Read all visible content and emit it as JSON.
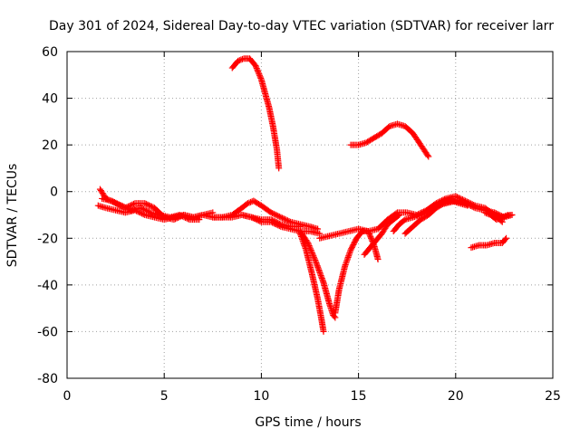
{
  "chart_data": {
    "type": "scatter",
    "title": "Day 301 of 2024, Sidereal Day-to-day VTEC variation (SDTVAR) for receiver larr",
    "xlabel": "GPS time / hours",
    "ylabel": "SDTVAR / TECUs",
    "xlim": [
      0,
      25
    ],
    "ylim": [
      -80,
      60
    ],
    "xticks": [
      "0",
      "5",
      "10",
      "15",
      "20",
      "25"
    ],
    "yticks": [
      "60",
      "40",
      "20",
      "0",
      "-20",
      "-40",
      "-60",
      "-80"
    ],
    "grid": true,
    "legend": "none",
    "marker": "plus",
    "color": "#ff0000",
    "arcs": [
      {
        "x": [
          8.5,
          8.8,
          9.1,
          9.4,
          9.7,
          10.0,
          10.2,
          10.4,
          10.6,
          10.8,
          10.9
        ],
        "y": [
          53,
          56,
          57,
          57,
          54,
          48,
          42,
          36,
          28,
          18,
          10
        ]
      },
      {
        "x": [
          14.6,
          15.0,
          15.4,
          15.8,
          16.2,
          16.6,
          17.0,
          17.4,
          17.8,
          18.2,
          18.6
        ],
        "y": [
          20,
          20,
          21,
          23,
          25,
          28,
          29,
          28,
          25,
          20,
          15
        ]
      },
      {
        "x": [
          1.6,
          2.0,
          2.5,
          3.0,
          3.5,
          4.0,
          4.5,
          5.0,
          5.5,
          6.0,
          6.5,
          7.0,
          7.5,
          8.0,
          8.5,
          9.0,
          9.5,
          10.0,
          10.5,
          11.0,
          11.5,
          12.0,
          12.5,
          13.0
        ],
        "y": [
          -6,
          -7,
          -8,
          -9,
          -8,
          -10,
          -11,
          -12,
          -11,
          -10,
          -11,
          -10,
          -11,
          -11,
          -11,
          -10,
          -11,
          -13,
          -13,
          -15,
          -16,
          -17,
          -17,
          -18
        ]
      },
      {
        "x": [
          1.7,
          2.0,
          2.5,
          3.0,
          3.5,
          4.0,
          4.5,
          5.0,
          5.5,
          6.0,
          6.5,
          7.0,
          7.5
        ],
        "y": [
          1,
          -3,
          -5,
          -7,
          -5,
          -5,
          -7,
          -11,
          -12,
          -10,
          -11,
          -10,
          -9
        ]
      },
      {
        "x": [
          1.8,
          2.3,
          2.8,
          3.3,
          3.8,
          4.3,
          4.8,
          5.3,
          5.8,
          6.3,
          6.8
        ],
        "y": [
          -3,
          -4,
          -6,
          -8,
          -7,
          -9,
          -10,
          -11,
          -10,
          -12,
          -12
        ]
      },
      {
        "x": [
          7.5,
          8.0,
          8.5,
          9.0,
          9.3,
          9.6,
          10.0,
          10.5,
          11.0,
          11.5,
          12.0,
          12.5,
          12.9
        ],
        "y": [
          -11,
          -11,
          -10,
          -7,
          -5,
          -4,
          -6,
          -9,
          -11,
          -13,
          -14,
          -15,
          -16
        ]
      },
      {
        "x": [
          9.0,
          9.5,
          10.0,
          10.5,
          11.0,
          11.5,
          12.0
        ],
        "y": [
          -10,
          -11,
          -12,
          -12,
          -14,
          -15,
          -15
        ]
      },
      {
        "x": [
          12.0,
          12.3,
          12.6,
          12.9,
          13.1,
          13.2
        ],
        "y": [
          -18,
          -25,
          -35,
          -46,
          -55,
          -60
        ]
      },
      {
        "x": [
          12.0,
          12.4,
          12.8,
          13.2,
          13.5,
          13.7,
          13.8
        ],
        "y": [
          -17,
          -22,
          -30,
          -39,
          -48,
          -53,
          -54
        ]
      },
      {
        "x": [
          13.8,
          14.0,
          14.3,
          14.6,
          14.9,
          15.2,
          15.5,
          15.8,
          16.0
        ],
        "y": [
          -52,
          -42,
          -32,
          -25,
          -20,
          -17,
          -17,
          -23,
          -29
        ]
      },
      {
        "x": [
          13.0,
          13.5,
          14.0,
          14.5,
          15.0,
          15.5,
          16.0,
          16.5,
          17.0,
          17.5,
          18.0
        ],
        "y": [
          -20,
          -19,
          -18,
          -17,
          -16,
          -17,
          -16,
          -12,
          -9,
          -9,
          -10
        ]
      },
      {
        "x": [
          15.3,
          15.6,
          15.9,
          16.2,
          16.5,
          16.8,
          17.1
        ],
        "y": [
          -27,
          -24,
          -21,
          -18,
          -14,
          -12,
          -10
        ]
      },
      {
        "x": [
          16.8,
          17.1,
          17.4,
          17.8,
          18.2,
          18.6,
          19.0,
          19.4,
          19.8
        ],
        "y": [
          -17,
          -14,
          -12,
          -11,
          -10,
          -8,
          -6,
          -4,
          -3
        ]
      },
      {
        "x": [
          17.4,
          17.8,
          18.2,
          18.6,
          19.0,
          19.4,
          19.8,
          20.2,
          20.6
        ],
        "y": [
          -18,
          -15,
          -12,
          -10,
          -7,
          -5,
          -4,
          -5,
          -6
        ]
      },
      {
        "x": [
          18.0,
          18.5,
          19.0,
          19.5,
          20.0,
          20.5,
          21.0,
          21.5,
          22.0,
          22.4
        ],
        "y": [
          -10,
          -8,
          -5,
          -3,
          -2,
          -4,
          -6,
          -7,
          -10,
          -13
        ]
      },
      {
        "x": [
          19.0,
          19.5,
          20.0,
          20.5,
          21.0,
          21.5,
          22.0,
          22.5,
          22.9
        ],
        "y": [
          -6,
          -5,
          -4,
          -5,
          -7,
          -8,
          -9,
          -11,
          -10
        ]
      },
      {
        "x": [
          20.8,
          21.2,
          21.6,
          22.0,
          22.4,
          22.6
        ],
        "y": [
          -24,
          -23,
          -23,
          -22,
          -22,
          -20
        ]
      },
      {
        "x": [
          21.5,
          21.8,
          22.1,
          22.4,
          22.7,
          22.9
        ],
        "y": [
          -9,
          -10,
          -12,
          -11,
          -10,
          -10
        ]
      }
    ]
  }
}
